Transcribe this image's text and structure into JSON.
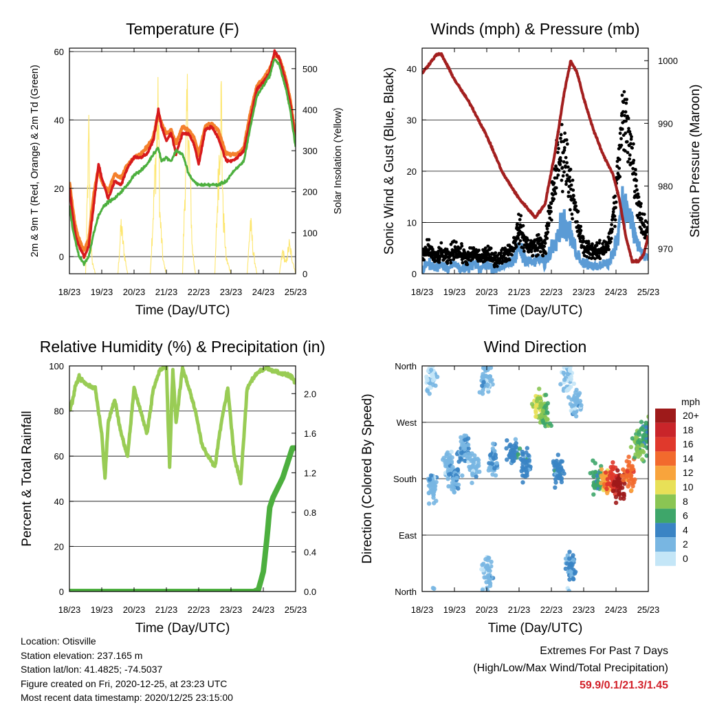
{
  "colors": {
    "temp_2m": "#d7191c",
    "temp_9m": "#f4802c",
    "dewpoint": "#4caf3e",
    "insolation": "#fde66e",
    "wind": "#5b9bd5",
    "gust": "#000000",
    "pressure": "#a31f1f",
    "rh": "#99cc55",
    "precip": "#4caf3e",
    "extremes_values": "#d21f28"
  },
  "info": {
    "location": "Location: Otisville",
    "elevation": "Station elevation: 237.165 m",
    "latlon": "Station lat/lon: 41.4825; -74.5037",
    "created": "Figure created on Fri, 2020-12-25, at 23:23 UTC",
    "recent": "Most recent data timestamp: 2020/12/25 23:15:00"
  },
  "extremes": {
    "title": "Extremes For Past 7 Days",
    "subtitle": "(High/Low/Max Wind/Total Precipitation)",
    "values": "59.9/0.1/21.3/1.45"
  },
  "chart_data": [
    {
      "type": "line",
      "title": "Temperature (F)",
      "xlabel": "Time (Day/UTC)",
      "ylabel": "2m & 9m T (Red, Orange) & 2m Td (Green)",
      "ylabel_right": "Solar Insolation (Yellow)",
      "x_ticks": [
        "18/23",
        "19/23",
        "20/23",
        "21/23",
        "22/23",
        "23/23",
        "24/23",
        "25/23"
      ],
      "ylim": [
        -5,
        61
      ],
      "y_ticks": [
        0,
        20,
        40,
        60
      ],
      "ylim_right": [
        0,
        550
      ],
      "y_ticks_right": [
        0,
        100,
        200,
        300,
        400,
        500
      ],
      "grid": "horizontal",
      "series": [
        {
          "key": "temp_9m",
          "x": [
            0,
            0.1,
            0.2,
            0.3,
            0.45,
            0.6,
            0.75,
            0.9,
            1.0,
            1.2,
            1.4,
            1.6,
            1.8,
            2.0,
            2.2,
            2.4,
            2.6,
            2.75,
            2.85,
            3.0,
            3.15,
            3.3,
            3.5,
            3.7,
            3.85,
            4.0,
            4.2,
            4.4,
            4.6,
            4.85,
            5.0,
            5.2,
            5.4,
            5.6,
            5.8,
            6.0,
            6.2,
            6.35,
            6.5,
            6.7,
            6.85,
            7.0
          ],
          "y": [
            22,
            14,
            8,
            5,
            2,
            5,
            18,
            26,
            22,
            19,
            24,
            23,
            27,
            29,
            30,
            32,
            35,
            42,
            39,
            36,
            37,
            33,
            38,
            37,
            35,
            30,
            38,
            39,
            37,
            30,
            30,
            30,
            32,
            42,
            50,
            52,
            55,
            59,
            58,
            52,
            45,
            34
          ]
        },
        {
          "key": "temp_2m",
          "x": [
            0,
            0.1,
            0.2,
            0.3,
            0.45,
            0.6,
            0.75,
            0.9,
            1.0,
            1.2,
            1.4,
            1.6,
            1.8,
            2.0,
            2.2,
            2.4,
            2.6,
            2.75,
            2.85,
            3.0,
            3.15,
            3.3,
            3.5,
            3.7,
            3.85,
            4.0,
            4.2,
            4.4,
            4.6,
            4.85,
            5.0,
            5.2,
            5.4,
            5.6,
            5.8,
            6.0,
            6.2,
            6.35,
            6.5,
            6.7,
            6.85,
            7.0
          ],
          "y": [
            20,
            12,
            6,
            3,
            0,
            3,
            15,
            27,
            23,
            17,
            22,
            21,
            26,
            29,
            29,
            30,
            34,
            43,
            38,
            34,
            36,
            30,
            36,
            36,
            33,
            27,
            37,
            38,
            35,
            28,
            28,
            29,
            31,
            40,
            49,
            51,
            54,
            60,
            58,
            51,
            44,
            33
          ]
        },
        {
          "key": "dewpoint",
          "x": [
            0,
            0.1,
            0.2,
            0.3,
            0.45,
            0.6,
            0.75,
            0.9,
            1.0,
            1.2,
            1.4,
            1.6,
            1.8,
            2.0,
            2.2,
            2.4,
            2.6,
            2.75,
            2.85,
            3.0,
            3.15,
            3.3,
            3.5,
            3.7,
            3.85,
            4.0,
            4.2,
            4.4,
            4.6,
            4.85,
            5.0,
            5.2,
            5.4,
            5.6,
            5.8,
            6.0,
            6.2,
            6.35,
            6.5,
            6.7,
            6.85,
            7.0
          ],
          "y": [
            15,
            8,
            4,
            0,
            -2,
            0,
            7,
            12,
            14,
            16,
            17,
            19,
            21,
            24,
            25,
            27,
            30,
            32,
            28,
            29,
            28,
            31,
            30,
            24,
            22,
            21,
            21,
            21,
            21,
            22,
            24,
            26,
            28,
            38,
            47,
            50,
            53,
            58,
            56,
            49,
            42,
            32
          ]
        },
        {
          "key": "insolation",
          "axis": "right",
          "x": [
            0,
            0.5,
            0.6,
            0.65,
            0.7,
            0.8,
            1.5,
            1.6,
            1.7,
            1.8,
            2.5,
            2.75,
            2.8,
            2.9,
            3.0,
            3.5,
            3.65,
            3.75,
            3.8,
            3.9,
            4.5,
            4.7,
            4.75,
            4.85,
            5.0,
            5.5,
            5.6,
            5.7,
            5.8,
            6.5,
            6.6,
            6.7,
            6.8,
            7.0
          ],
          "y": [
            0,
            0,
            420,
            120,
            40,
            0,
            0,
            150,
            60,
            0,
            0,
            510,
            180,
            40,
            0,
            0,
            520,
            250,
            80,
            0,
            0,
            540,
            200,
            50,
            0,
            0,
            160,
            60,
            0,
            0,
            70,
            30,
            90,
            0
          ]
        }
      ]
    },
    {
      "type": "scatter",
      "title": "Winds (mph) & Pressure (mb)",
      "xlabel": "Time (Day/UTC)",
      "ylabel": "Sonic Wind & Gust (Blue, Black)",
      "ylabel_right": "Station Pressure (Maroon)",
      "x_ticks": [
        "18/23",
        "19/23",
        "20/23",
        "21/23",
        "22/23",
        "23/23",
        "24/23",
        "25/23"
      ],
      "ylim": [
        0,
        44
      ],
      "y_ticks": [
        0,
        10,
        20,
        30,
        40
      ],
      "ylim_right": [
        966,
        1002
      ],
      "y_ticks_right": [
        970,
        980,
        990,
        1000
      ],
      "grid": "horizontal",
      "series": [
        {
          "key": "wind",
          "x": [
            0,
            0.2,
            0.4,
            0.6,
            0.8,
            1.0,
            1.2,
            1.4,
            1.6,
            1.8,
            2.0,
            2.2,
            2.4,
            2.6,
            2.8,
            3.0,
            3.2,
            3.4,
            3.6,
            3.8,
            4.0,
            4.2,
            4.4,
            4.6,
            4.8,
            5.0,
            5.2,
            5.4,
            5.6,
            5.8,
            6.0,
            6.2,
            6.4,
            6.6,
            6.8,
            7.0
          ],
          "y": [
            1,
            2,
            1,
            2,
            1,
            2,
            1,
            1,
            2,
            1,
            2,
            1,
            1,
            2,
            2,
            5,
            3,
            2,
            3,
            2,
            5,
            8,
            10,
            7,
            4,
            2,
            2,
            1,
            2,
            2,
            6,
            14,
            12,
            7,
            4,
            3
          ]
        },
        {
          "key": "gust",
          "x": [
            0,
            0.2,
            0.4,
            0.6,
            0.8,
            1.0,
            1.2,
            1.4,
            1.6,
            1.8,
            2.0,
            2.2,
            2.4,
            2.6,
            2.8,
            3.0,
            3.2,
            3.4,
            3.6,
            3.8,
            4.0,
            4.2,
            4.4,
            4.6,
            4.8,
            5.0,
            5.2,
            5.4,
            5.6,
            5.8,
            6.0,
            6.2,
            6.4,
            6.6,
            6.8,
            7.0
          ],
          "y": [
            3,
            5,
            3,
            4,
            3,
            5,
            4,
            3,
            4,
            3,
            4,
            3,
            3,
            4,
            5,
            9,
            6,
            5,
            6,
            5,
            14,
            22,
            24,
            17,
            10,
            5,
            5,
            4,
            5,
            6,
            15,
            30,
            28,
            18,
            10,
            8
          ]
        },
        {
          "key": "pressure",
          "axis": "right",
          "x": [
            0,
            0.15,
            0.3,
            0.45,
            0.6,
            1.0,
            1.5,
            2.0,
            2.5,
            3.0,
            3.5,
            3.8,
            4.1,
            4.4,
            4.6,
            4.8,
            5.0,
            5.3,
            5.6,
            5.9,
            6.1,
            6.3,
            6.5,
            6.7,
            6.85,
            7.0
          ],
          "y": [
            998,
            999,
            1000,
            1001,
            1001,
            997,
            993,
            988,
            982,
            978,
            975,
            977,
            985,
            995,
            1000,
            998,
            994,
            989,
            985,
            982,
            978,
            972,
            968,
            968,
            969,
            972
          ]
        }
      ]
    },
    {
      "type": "line",
      "title": "Relative Humidity (%) & Precipitation (in)",
      "xlabel": "Time (Day/UTC)",
      "ylabel": "Percent & Total Rainfall",
      "x_ticks": [
        "18/23",
        "19/23",
        "20/23",
        "21/23",
        "22/23",
        "23/23",
        "24/23",
        "25/23"
      ],
      "ylim": [
        0,
        100
      ],
      "y_ticks": [
        0,
        20,
        40,
        60,
        80,
        100
      ],
      "ylim_right": [
        0,
        2.28
      ],
      "y_ticks_right": [
        "0.0",
        "0.4",
        "0.8",
        "1.2",
        "1.6",
        "2.0"
      ],
      "grid": "horizontal",
      "series": [
        {
          "key": "rh",
          "x": [
            0,
            0.1,
            0.2,
            0.3,
            0.5,
            0.8,
            1.0,
            1.1,
            1.2,
            1.4,
            1.6,
            1.8,
            2.0,
            2.2,
            2.4,
            2.6,
            2.8,
            3.0,
            3.1,
            3.2,
            3.3,
            3.5,
            3.7,
            3.9,
            4.1,
            4.3,
            4.5,
            4.7,
            4.9,
            5.1,
            5.3,
            5.5,
            5.7,
            5.9,
            6.1,
            6.3,
            6.5,
            6.7,
            6.9,
            7.0
          ],
          "y": [
            80,
            85,
            92,
            95,
            92,
            90,
            70,
            50,
            75,
            85,
            70,
            60,
            90,
            80,
            70,
            90,
            98,
            100,
            55,
            98,
            75,
            99,
            90,
            80,
            65,
            60,
            55,
            75,
            90,
            60,
            48,
            90,
            95,
            98,
            99,
            98,
            97,
            96,
            95,
            92
          ]
        },
        {
          "key": "precip",
          "axis": "right",
          "x": [
            0,
            1,
            2,
            3,
            4,
            5,
            5.7,
            5.85,
            6.0,
            6.1,
            6.2,
            6.3,
            6.45,
            6.6,
            6.75,
            6.9,
            7.0
          ],
          "y": [
            0,
            0,
            0,
            0,
            0,
            0,
            0,
            0.02,
            0.2,
            0.5,
            0.85,
            0.95,
            1.05,
            1.15,
            1.3,
            1.45,
            1.45
          ]
        }
      ]
    },
    {
      "type": "scatter",
      "title": "Wind Direction",
      "xlabel": "Time (Day/UTC)",
      "ylabel": "Direction (Colored By Speed)",
      "x_ticks": [
        "18/23",
        "19/23",
        "20/23",
        "21/23",
        "22/23",
        "23/23",
        "24/23",
        "25/23"
      ],
      "ylim": [
        0,
        360
      ],
      "y_ticks": [
        "North",
        "East",
        "South",
        "West",
        "North"
      ],
      "grid": "horizontal",
      "legend": {
        "title": "mph",
        "labels": [
          "20+",
          "18",
          "16",
          "14",
          "12",
          "10",
          "8",
          "6",
          "4",
          "2",
          "0"
        ],
        "colors": [
          "#9e1a1a",
          "#c9252a",
          "#e0392c",
          "#f26a2d",
          "#f8a43c",
          "#e8e057",
          "#8ac553",
          "#3ea66a",
          "#3a84c4",
          "#78b6e2",
          "#c4e6f7"
        ]
      },
      "clusters": [
        {
          "t": 0.3,
          "dir": 340,
          "spd": 1
        },
        {
          "t": 0.3,
          "dir": 170,
          "spd": 2
        },
        {
          "t": 0.8,
          "dir": 200,
          "spd": 2
        },
        {
          "t": 1.0,
          "dir": 180,
          "spd": 3
        },
        {
          "t": 1.3,
          "dir": 230,
          "spd": 3
        },
        {
          "t": 1.6,
          "dir": 200,
          "spd": 2
        },
        {
          "t": 2.0,
          "dir": 30,
          "spd": 2
        },
        {
          "t": 2.0,
          "dir": 340,
          "spd": 2
        },
        {
          "t": 2.2,
          "dir": 210,
          "spd": 3
        },
        {
          "t": 2.8,
          "dir": 220,
          "spd": 4
        },
        {
          "t": 3.2,
          "dir": 200,
          "spd": 4
        },
        {
          "t": 3.6,
          "dir": 295,
          "spd": 9
        },
        {
          "t": 3.8,
          "dir": 285,
          "spd": 7
        },
        {
          "t": 4.2,
          "dir": 190,
          "spd": 4
        },
        {
          "t": 4.5,
          "dir": 340,
          "spd": 1
        },
        {
          "t": 4.6,
          "dir": 40,
          "spd": 3
        },
        {
          "t": 4.8,
          "dir": 300,
          "spd": 2
        },
        {
          "t": 5.4,
          "dir": 180,
          "spd": 6
        },
        {
          "t": 5.7,
          "dir": 175,
          "spd": 12
        },
        {
          "t": 5.9,
          "dir": 180,
          "spd": 16
        },
        {
          "t": 6.1,
          "dir": 170,
          "spd": 20
        },
        {
          "t": 6.4,
          "dir": 190,
          "spd": 14
        },
        {
          "t": 6.7,
          "dir": 230,
          "spd": 7
        },
        {
          "t": 6.9,
          "dir": 250,
          "spd": 6
        }
      ]
    }
  ]
}
